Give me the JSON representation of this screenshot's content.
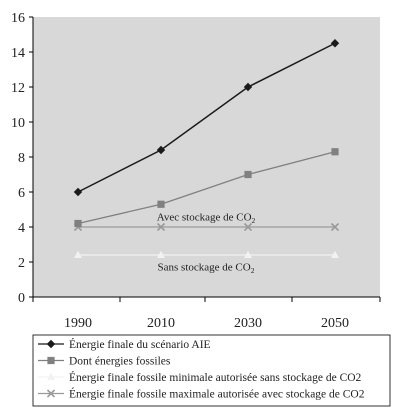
{
  "chart_data": {
    "type": "line",
    "categories": [
      "1990",
      "2010",
      "2030",
      "2050"
    ],
    "ylim": [
      0,
      16
    ],
    "y_ticks": [
      0,
      2,
      4,
      6,
      8,
      10,
      12,
      14,
      16
    ],
    "y_tick_labels": [
      "0",
      "2",
      "4",
      "6",
      "8",
      "10",
      "12",
      "14",
      "16"
    ],
    "grid": false,
    "plot_background": "#d8d8d8",
    "legend_position": "bottom",
    "series": [
      {
        "name": "Énergie finale du scénario AIE",
        "values": [
          6.0,
          8.4,
          12.0,
          14.5
        ],
        "color": "#1a1a1a",
        "marker": "diamond"
      },
      {
        "name": "Dont énergies fossiles",
        "values": [
          4.2,
          5.3,
          7.0,
          8.3
        ],
        "color": "#808080",
        "marker": "square"
      },
      {
        "name": "Énergie finale fossile minimale autorisée sans stockage de CO2",
        "values": [
          2.4,
          2.4,
          2.4,
          2.4
        ],
        "color": "#f2f2f2",
        "marker": "triangle"
      },
      {
        "name": "Énergie finale fossile maximale autorisée avec stockage de CO2",
        "values": [
          4.0,
          4.0,
          4.0,
          4.0
        ],
        "color": "#9a9a9a",
        "marker": "x"
      }
    ],
    "annotations": [
      {
        "text": "Avec stockage de CO",
        "subscript": "2",
        "y": 4.25
      },
      {
        "text": "Sans stockage de CO",
        "subscript": "2",
        "y": 1.4
      }
    ]
  }
}
